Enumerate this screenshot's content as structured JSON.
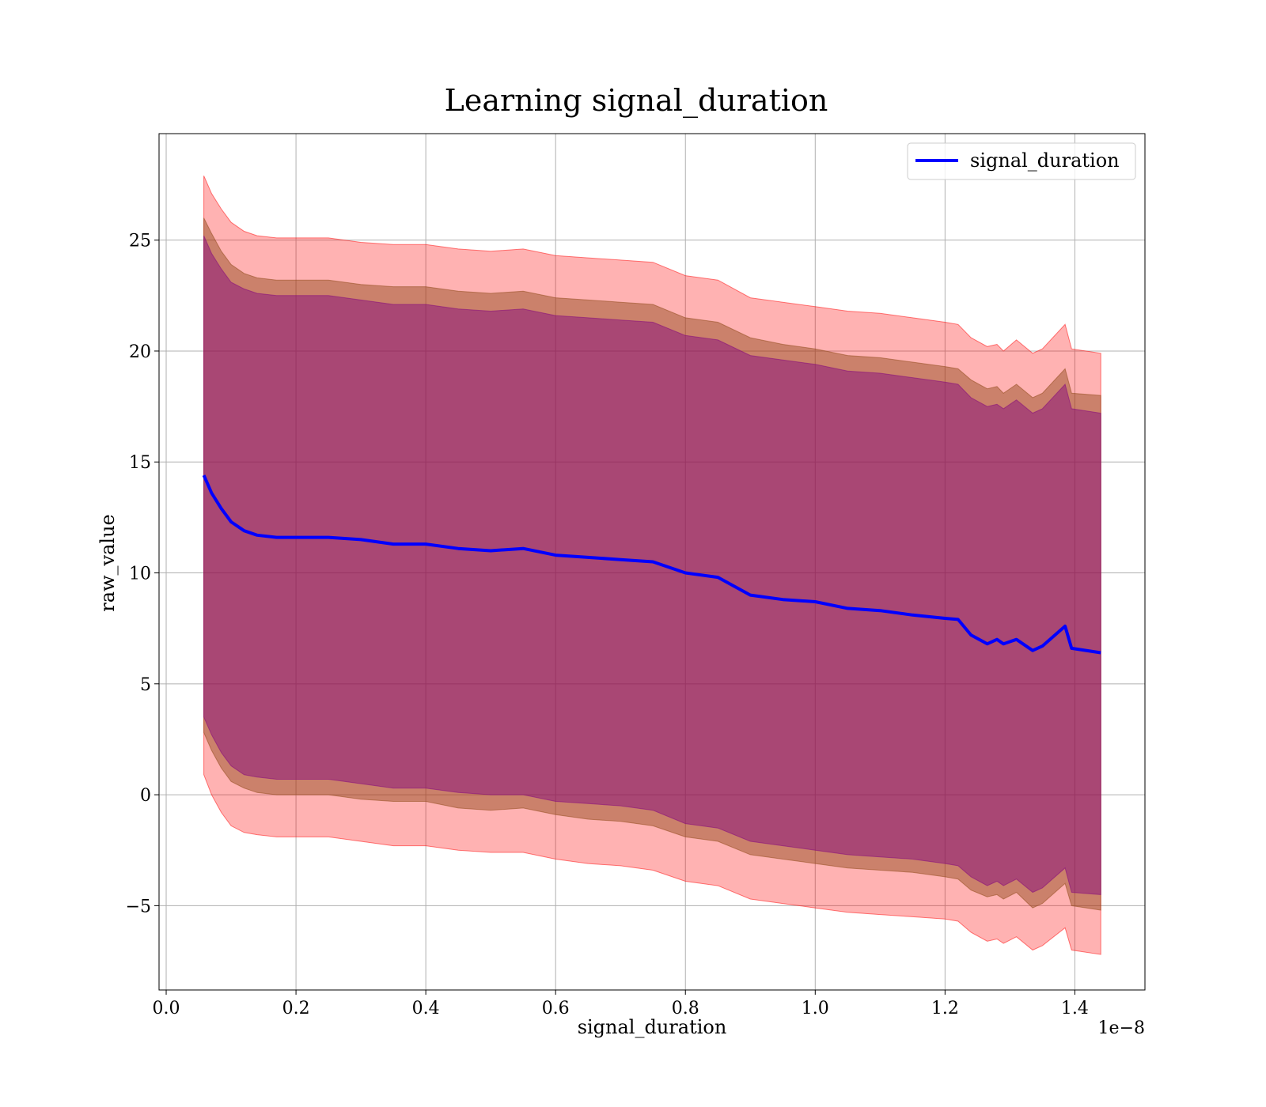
{
  "chart_data": {
    "type": "line",
    "title": "Learning signal_duration",
    "xlabel": "signal_duration",
    "ylabel": "raw_value",
    "x_offset_label": "1e−8",
    "xlim": [
      -0.011,
      1.508
    ],
    "ylim": [
      -8.8,
      29.8
    ],
    "x_ticks": [
      0.0,
      0.2,
      0.4,
      0.6,
      0.8,
      1.0,
      1.2,
      1.4
    ],
    "x_tick_labels": [
      "0.0",
      "0.2",
      "0.4",
      "0.6",
      "0.8",
      "1.0",
      "1.2",
      "1.4"
    ],
    "y_ticks": [
      -5,
      0,
      5,
      10,
      15,
      20,
      25
    ],
    "y_tick_labels": [
      "−5",
      "0",
      "5",
      "10",
      "15",
      "20",
      "25"
    ],
    "grid": true,
    "legend": {
      "position": "top-right",
      "entries": [
        "signal_duration"
      ]
    },
    "colors": {
      "line": "#0000ff",
      "band_outer": "#ff0000",
      "band_middle": "#8b4513",
      "band_inner": "#800080"
    },
    "x": [
      0.058,
      0.07,
      0.085,
      0.1,
      0.12,
      0.14,
      0.17,
      0.2,
      0.25,
      0.3,
      0.35,
      0.4,
      0.45,
      0.5,
      0.55,
      0.6,
      0.65,
      0.7,
      0.75,
      0.8,
      0.85,
      0.9,
      0.95,
      1.0,
      1.05,
      1.1,
      1.15,
      1.2,
      1.22,
      1.24,
      1.265,
      1.28,
      1.29,
      1.31,
      1.335,
      1.35,
      1.385,
      1.395,
      1.44
    ],
    "series": [
      {
        "name": "signal_duration",
        "values": [
          14.4,
          13.6,
          12.9,
          12.3,
          11.9,
          11.7,
          11.6,
          11.6,
          11.6,
          11.5,
          11.3,
          11.3,
          11.1,
          11.0,
          11.1,
          10.8,
          10.7,
          10.6,
          10.5,
          10.0,
          9.8,
          9.0,
          8.8,
          8.7,
          8.4,
          8.3,
          8.1,
          7.95,
          7.9,
          7.2,
          6.8,
          7.0,
          6.8,
          7.0,
          6.5,
          6.7,
          7.6,
          6.6,
          6.4
        ]
      },
      {
        "name": "",
        "values_lower": [
          0.9,
          0.0,
          -0.8,
          -1.4,
          -1.7,
          -1.8,
          -1.9,
          -1.9,
          -1.9,
          -2.1,
          -2.3,
          -2.3,
          -2.5,
          -2.6,
          -2.6,
          -2.9,
          -3.1,
          -3.2,
          -3.4,
          -3.9,
          -4.1,
          -4.7,
          -4.9,
          -5.1,
          -5.3,
          -5.4,
          -5.5,
          -5.6,
          -5.7,
          -6.2,
          -6.6,
          -6.5,
          -6.7,
          -6.4,
          -7.0,
          -6.8,
          -6.0,
          -7.0,
          -7.2
        ],
        "values_upper": [
          27.9,
          27.1,
          26.4,
          25.8,
          25.4,
          25.2,
          25.1,
          25.1,
          25.1,
          24.9,
          24.8,
          24.8,
          24.6,
          24.5,
          24.6,
          24.3,
          24.2,
          24.1,
          24.0,
          23.4,
          23.2,
          22.4,
          22.2,
          22.0,
          21.8,
          21.7,
          21.5,
          21.3,
          21.2,
          20.6,
          20.2,
          20.3,
          20.0,
          20.5,
          19.9,
          20.1,
          21.2,
          20.1,
          19.9
        ]
      },
      {
        "name": "",
        "values_lower": [
          2.8,
          2.0,
          1.2,
          0.6,
          0.3,
          0.1,
          0.0,
          0.0,
          0.0,
          -0.2,
          -0.3,
          -0.3,
          -0.6,
          -0.7,
          -0.6,
          -0.9,
          -1.1,
          -1.2,
          -1.4,
          -1.9,
          -2.1,
          -2.7,
          -2.9,
          -3.1,
          -3.3,
          -3.4,
          -3.5,
          -3.7,
          -3.8,
          -4.3,
          -4.6,
          -4.5,
          -4.7,
          -4.4,
          -5.1,
          -4.9,
          -4.0,
          -5.0,
          -5.2
        ],
        "values_upper": [
          26.0,
          25.3,
          24.5,
          23.9,
          23.5,
          23.3,
          23.2,
          23.2,
          23.2,
          23.0,
          22.9,
          22.9,
          22.7,
          22.6,
          22.7,
          22.4,
          22.3,
          22.2,
          22.1,
          21.5,
          21.3,
          20.6,
          20.3,
          20.1,
          19.8,
          19.7,
          19.5,
          19.3,
          19.2,
          18.7,
          18.3,
          18.4,
          18.1,
          18.5,
          17.9,
          18.1,
          19.2,
          18.1,
          18.0
        ]
      },
      {
        "name": "",
        "values_lower": [
          3.5,
          2.7,
          1.9,
          1.3,
          0.9,
          0.8,
          0.7,
          0.7,
          0.7,
          0.5,
          0.3,
          0.3,
          0.1,
          0.0,
          0.0,
          -0.3,
          -0.4,
          -0.5,
          -0.7,
          -1.3,
          -1.5,
          -2.1,
          -2.3,
          -2.5,
          -2.7,
          -2.8,
          -2.9,
          -3.1,
          -3.2,
          -3.7,
          -4.1,
          -3.9,
          -4.1,
          -3.8,
          -4.4,
          -4.2,
          -3.3,
          -4.4,
          -4.5
        ],
        "values_upper": [
          25.2,
          24.4,
          23.7,
          23.1,
          22.8,
          22.6,
          22.5,
          22.5,
          22.5,
          22.3,
          22.1,
          22.1,
          21.9,
          21.8,
          21.9,
          21.6,
          21.5,
          21.4,
          21.3,
          20.7,
          20.5,
          19.8,
          19.6,
          19.4,
          19.1,
          19.0,
          18.8,
          18.6,
          18.5,
          17.9,
          17.5,
          17.6,
          17.4,
          17.8,
          17.2,
          17.4,
          18.5,
          17.4,
          17.2
        ]
      }
    ]
  }
}
